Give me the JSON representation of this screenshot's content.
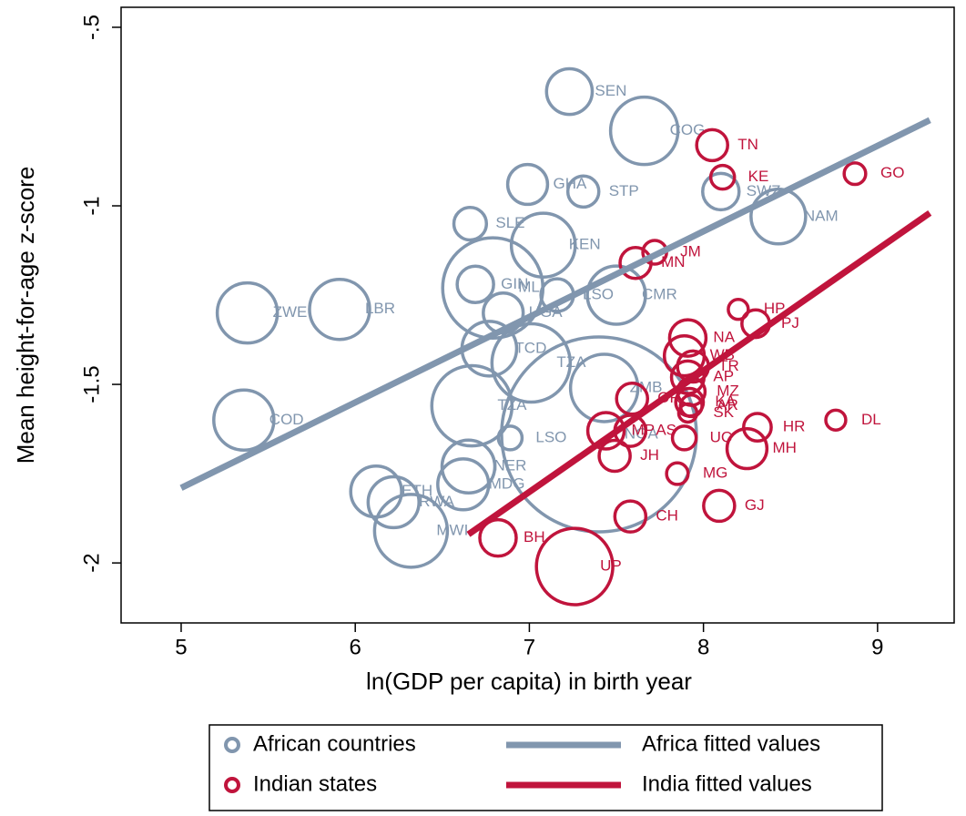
{
  "chart_data": {
    "type": "scatter",
    "xlabel": "ln(GDP per capita) in birth year",
    "ylabel": "Mean height-for-age z-score",
    "xlim": [
      4.655,
      9.44
    ],
    "ylim": [
      -2.168,
      -0.444
    ],
    "xticks": [
      5,
      6,
      7,
      8,
      9
    ],
    "yticks": [
      {
        "value": -0.5,
        "label": "-.5"
      },
      -1,
      -1.5,
      -2
    ],
    "grid": false,
    "legend": "bottom",
    "series": [
      {
        "name": "African countries",
        "color": "#8196ae",
        "labels": [
          "SEN",
          "COG",
          "GHA",
          "STP",
          "SWZ",
          "NAM",
          "SLE",
          "KEN",
          "GIN",
          "MLI",
          "LSO",
          "CMR",
          "ZWE",
          "LBR",
          "UGA",
          "TCD",
          "TZA",
          "ZMB",
          "TZA",
          "COD",
          "LSO",
          "NGA",
          "NER",
          "MDG",
          "ETH",
          "RWA",
          "MWI"
        ],
        "x": [
          7.23,
          7.66,
          6.99,
          7.31,
          8.1,
          8.43,
          6.66,
          7.08,
          6.69,
          6.79,
          7.16,
          7.5,
          5.38,
          5.91,
          6.85,
          6.77,
          7.01,
          7.43,
          6.67,
          5.36,
          6.89,
          7.4,
          6.65,
          6.62,
          6.12,
          6.22,
          6.32
        ],
        "values": [
          -0.68,
          -0.79,
          -0.94,
          -0.96,
          -0.96,
          -1.03,
          -1.05,
          -1.11,
          -1.22,
          -1.23,
          -1.25,
          -1.25,
          -1.3,
          -1.29,
          -1.3,
          -1.4,
          -1.44,
          -1.51,
          -1.56,
          -1.6,
          -1.65,
          -1.64,
          -1.73,
          -1.78,
          -1.8,
          -1.83,
          -1.91
        ],
        "sizes": [
          6.3,
          13.7,
          4.8,
          2.9,
          4,
          9,
          3.2,
          12.3,
          4,
          30.3,
          3.2,
          10.2,
          10.9,
          10.9,
          4.8,
          9,
          18.5,
          13.7,
          19.4,
          10.9,
          1.7,
          114.5,
          8.4,
          7.8,
          7.8,
          7.8,
          16
        ]
      },
      {
        "name": "Indian states",
        "color": "#c0143c",
        "labels": [
          "TN",
          "KE",
          "GO",
          "MN",
          "JM",
          "HP",
          "PJ",
          "NA",
          "WB",
          "TR",
          "AP",
          "MZ",
          "KA",
          "AR",
          "SK",
          "OR",
          "DL",
          "HR",
          "MH",
          "UC",
          "MP",
          "AS",
          "JH",
          "MG",
          "CH",
          "GJ",
          "BH",
          "UP"
        ],
        "x": [
          8.05,
          8.11,
          8.87,
          7.61,
          7.72,
          8.2,
          8.3,
          7.91,
          7.89,
          7.94,
          7.91,
          7.93,
          7.92,
          7.93,
          7.91,
          7.59,
          8.76,
          8.31,
          8.25,
          7.89,
          7.44,
          7.58,
          7.49,
          7.85,
          7.58,
          8.09,
          6.82,
          7.26
        ],
        "values": [
          -0.83,
          -0.92,
          -0.91,
          -1.16,
          -1.13,
          -1.29,
          -1.33,
          -1.37,
          -1.42,
          -1.45,
          -1.48,
          -1.52,
          -1.55,
          -1.56,
          -1.58,
          -1.54,
          -1.6,
          -1.62,
          -1.68,
          -1.65,
          -1.63,
          -1.63,
          -1.7,
          -1.75,
          -1.87,
          -1.84,
          -1.93,
          -2.01
        ],
        "sizes": [
          2.9,
          1.7,
          1.4,
          2.9,
          1.7,
          1.2,
          2.3,
          4,
          4.8,
          2.9,
          3.2,
          2.3,
          2.3,
          1.4,
          1,
          2.9,
          1.2,
          2.3,
          4.8,
          1.7,
          4,
          2.9,
          2.9,
          1.4,
          2.9,
          2.9,
          4,
          17.6
        ]
      }
    ],
    "fits": [
      {
        "name": "Africa fitted values",
        "color": "#8196ae",
        "x": [
          5,
          9.3
        ],
        "values": [
          -1.79,
          -0.76
        ]
      },
      {
        "name": "India fitted values",
        "color": "#c0143c",
        "x": [
          6.65,
          9.3
        ],
        "values": [
          -1.92,
          -1.02
        ]
      }
    ]
  }
}
